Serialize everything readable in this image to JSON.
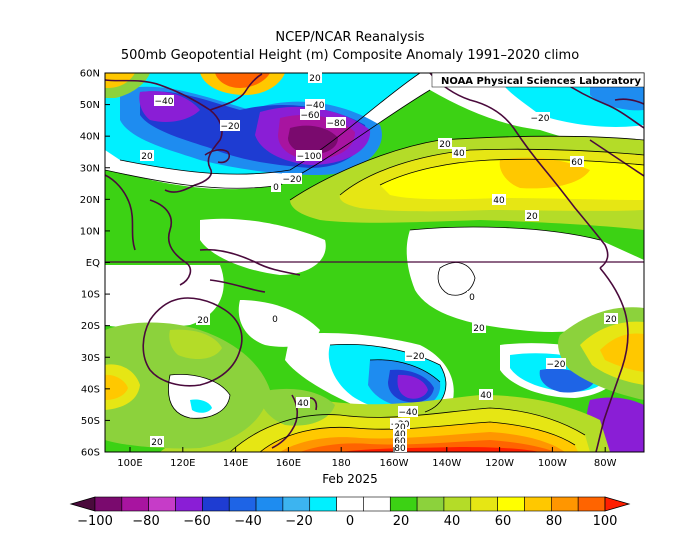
{
  "title": "NCEP/NCAR Reanalysis",
  "subtitle": "500mb Geopotential Height (m) Composite Anomaly 1991–2020 climo",
  "credit": "NOAA Physical Sciences Laboratory",
  "date_label": "Feb 2025",
  "lat_labels": [
    "60N",
    "50N",
    "40N",
    "30N",
    "20N",
    "10N",
    "EQ",
    "10S",
    "20S",
    "30S",
    "40S",
    "50S",
    "60S"
  ],
  "lon_labels": [
    "100E",
    "120E",
    "140E",
    "160E",
    "180",
    "160W",
    "140W",
    "120W",
    "100W",
    "80W"
  ],
  "colorbar": {
    "labels": [
      "−100",
      "−80",
      "−60",
      "−40",
      "−20",
      "0",
      "20",
      "40",
      "60",
      "80",
      "100"
    ],
    "colors": [
      "#4a0a3c",
      "#7a0a6e",
      "#a814a0",
      "#c63cc8",
      "#8a1ed6",
      "#1e3cd2",
      "#1e64e6",
      "#1e8cf0",
      "#3cb4f0",
      "#00f0ff",
      "#ffffff",
      "#ffffff",
      "#3cd214",
      "#8cd23c",
      "#b4dc28",
      "#e6e614",
      "#ffff00",
      "#ffc800",
      "#ff9600",
      "#ff6400",
      "#ff1e00"
    ]
  },
  "contour_labels": {
    "n_pacific_low": "−100",
    "n_pacific_m80": "−80",
    "n_pacific_m60": "−60",
    "n_pacific_m40": "−40",
    "n_pacific_m20": "−20",
    "n_pacific_0": "0",
    "asia_m40": "−40",
    "asia_m20": "−20",
    "asia_20": "20",
    "na_40": "40",
    "na_60": "60",
    "na_20a": "20",
    "na_40b": "40",
    "na_20b": "20",
    "greenland_m20": "−20",
    "sp_m20": "−20",
    "sp_m40": "−40",
    "sp_m20b": "−20",
    "sp_20": "20",
    "sp_40": "40",
    "sp_60": "60",
    "sp_80": "80",
    "aus_20": "20",
    "aus_0": "0",
    "tasman_40": "40",
    "tasman_20": "20",
    "eqpac_0": "0",
    "se_pac_m20": "−20",
    "se_pac_20": "20",
    "spcz_20": "20",
    "sa_20": "20",
    "sa_40": "40"
  }
}
